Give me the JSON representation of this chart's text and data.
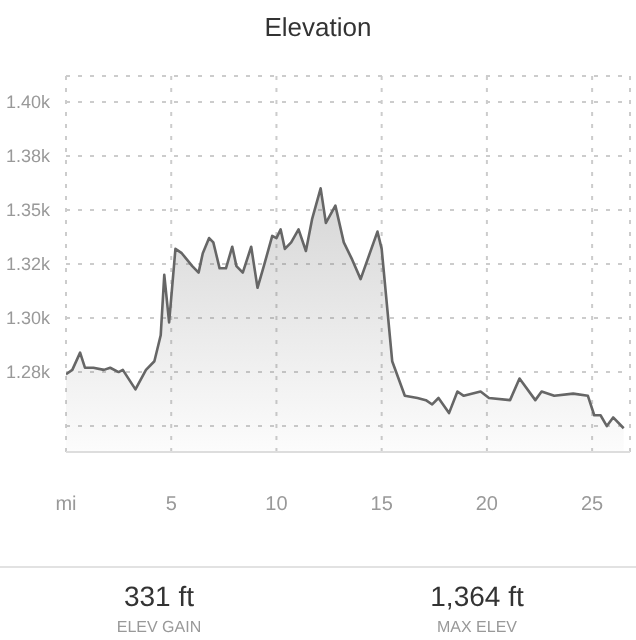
{
  "chart_data": {
    "type": "area",
    "title": "Elevation",
    "x": [
      0,
      0.3,
      0.67,
      0.9,
      1.3,
      1.8,
      2.1,
      2.5,
      2.7,
      3.3,
      3.8,
      4.2,
      4.5,
      4.67,
      4.9,
      5.2,
      5.5,
      6.0,
      6.3,
      6.5,
      6.8,
      7.0,
      7.3,
      7.6,
      7.9,
      8.1,
      8.4,
      8.8,
      9.1,
      9.4,
      9.8,
      10.0,
      10.2,
      10.4,
      10.7,
      11.05,
      11.4,
      11.7,
      12.1,
      12.35,
      12.8,
      13.2,
      13.6,
      14.0,
      14.8,
      15.0,
      15.5,
      16.1,
      16.7,
      17.1,
      17.4,
      17.7,
      18.2,
      18.6,
      18.9,
      19.7,
      20.1,
      21.1,
      21.55,
      22.3,
      22.6,
      23.2,
      24.1,
      24.8,
      25.1,
      25.4,
      25.7,
      26.0,
      26.5
    ],
    "series": [
      {
        "color": "#666666",
        "values": [
          1274,
          1276,
          1284,
          1277,
          1277,
          1276,
          1277,
          1275,
          1276,
          1267,
          1276,
          1280,
          1292,
          1320,
          1298,
          1332,
          1330,
          1324,
          1321,
          1330,
          1337,
          1335,
          1323,
          1323,
          1333,
          1324,
          1321,
          1333,
          1314,
          1324,
          1338,
          1337,
          1341,
          1332,
          1335,
          1341,
          1331,
          1346,
          1360,
          1344,
          1352,
          1335,
          1327,
          1318,
          1340,
          1332,
          1280,
          1264,
          1263,
          1262,
          1260,
          1263,
          1256,
          1266,
          1264,
          1266,
          1263,
          1262,
          1272,
          1262,
          1266,
          1264,
          1265,
          1264,
          1255,
          1255,
          1250,
          1254,
          1249
        ]
      }
    ],
    "xlim": [
      0,
      26.8
    ],
    "xticks": [
      {
        "value": 0,
        "label": "mi"
      },
      5,
      10,
      15,
      20,
      25
    ],
    "ylim": [
      1238,
      1412
    ],
    "yticks": [
      {
        "value": 1250,
        "label": null
      },
      {
        "value": 1275,
        "label": "1.28k"
      },
      {
        "value": 1300,
        "label": "1.30k"
      },
      {
        "value": 1325,
        "label": "1.32k"
      },
      {
        "value": 1350,
        "label": "1.35k"
      },
      {
        "value": 1375,
        "label": "1.38k"
      },
      {
        "value": 1400,
        "label": "1.40k"
      }
    ],
    "grid": true,
    "annotations": [
      "331 ft",
      "ELEV GAIN",
      "1,364 ft",
      "MAX ELEV"
    ]
  }
}
